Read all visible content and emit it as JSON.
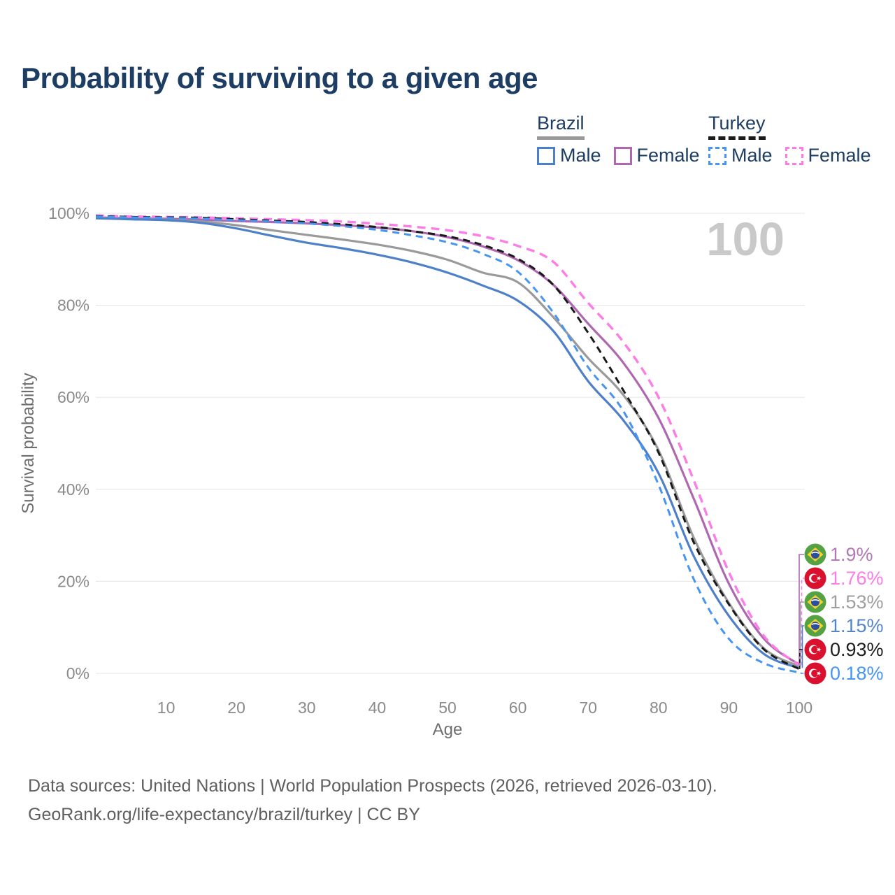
{
  "page": {
    "title": "Probability of surviving to a given age",
    "watermark_age": "100",
    "footer": {
      "line1": "Data sources: United Nations | World Population Prospects (2026, retrieved 2026-03-10).",
      "line2": "GeoRank.org/life-expectancy/brazil/turkey | CC BY"
    }
  },
  "legend": {
    "groups": [
      {
        "label": "Brazil",
        "line_style": "solid",
        "underline_color": "#9a9a9a",
        "items": [
          {
            "label": "Male",
            "color": "#4d80c9",
            "dashed": false
          },
          {
            "label": "Female",
            "color": "#ae68b1",
            "dashed": false
          }
        ]
      },
      {
        "label": "Turkey",
        "line_style": "dashed",
        "underline_color": "#1a1a1a",
        "items": [
          {
            "label": "Male",
            "color": "#4795f2",
            "dashed": true
          },
          {
            "label": "Female",
            "color": "#fc7de6",
            "dashed": true
          }
        ]
      }
    ]
  },
  "chart_data": {
    "type": "line",
    "title": "Probability of surviving to a given age",
    "xlabel": "Age",
    "ylabel": "Survival probability",
    "xlim": [
      0,
      100
    ],
    "ylim": [
      0,
      100
    ],
    "grid": true,
    "x_ticks": [
      10,
      20,
      30,
      40,
      50,
      60,
      70,
      80,
      90,
      100
    ],
    "y_ticks": [
      0,
      20,
      40,
      60,
      80,
      100
    ],
    "y_tick_suffix": "%",
    "x": [
      0,
      5,
      10,
      15,
      20,
      25,
      30,
      35,
      40,
      45,
      50,
      55,
      60,
      65,
      70,
      75,
      80,
      85,
      90,
      95,
      100
    ],
    "series": [
      {
        "id": "brazil_female",
        "name": "Brazil Female",
        "country": "Brazil",
        "sex": "Female",
        "color": "#ae68b1",
        "dash": "solid",
        "width": 3.2,
        "end_label": "1.9%",
        "values": [
          99.1,
          98.9,
          98.8,
          98.6,
          98.3,
          98.1,
          97.8,
          97.4,
          96.9,
          96.1,
          94.8,
          92.8,
          89.8,
          84.5,
          76.0,
          67.5,
          55.5,
          38.0,
          19.5,
          7.5,
          1.9
        ]
      },
      {
        "id": "brazil_avg",
        "name": "Brazil",
        "country": "Brazil",
        "sex": "Both",
        "color": "#9a9a9a",
        "dash": "solid",
        "width": 3.2,
        "end_label": "1.53%",
        "values": [
          99.0,
          98.8,
          98.6,
          98.2,
          97.4,
          96.3,
          95.3,
          94.3,
          93.2,
          91.8,
          89.9,
          87.1,
          85.0,
          77.5,
          68.5,
          60.5,
          48.5,
          29.5,
          15.3,
          5.4,
          1.53
        ]
      },
      {
        "id": "brazil_male",
        "name": "Brazil Male",
        "country": "Brazil",
        "sex": "Male",
        "color": "#4d80c9",
        "dash": "solid",
        "width": 3.2,
        "end_label": "1.15%",
        "values": [
          98.9,
          98.7,
          98.5,
          97.9,
          96.7,
          95.1,
          93.6,
          92.4,
          91.0,
          89.3,
          87.1,
          84.3,
          81.0,
          74.5,
          63.5,
          55.0,
          43.5,
          25.5,
          12.5,
          4.2,
          1.15
        ]
      },
      {
        "id": "turkey_female",
        "name": "Turkey Female",
        "country": "Turkey",
        "sex": "Female",
        "color": "#fc7de6",
        "dash": "dashed",
        "width": 3.4,
        "end_label": "1.76%",
        "values": [
          99.5,
          99.3,
          99.2,
          99.1,
          98.9,
          98.7,
          98.5,
          98.2,
          97.7,
          97.1,
          96.3,
          95.0,
          92.9,
          89.5,
          80.5,
          72.0,
          60.0,
          42.0,
          22.0,
          8.1,
          1.76
        ]
      },
      {
        "id": "turkey_avg",
        "name": "Turkey",
        "country": "Turkey",
        "sex": "Both",
        "color": "#1a1a1a",
        "dash": "dashed",
        "width": 3.0,
        "end_label": "0.93%",
        "values": [
          99.4,
          99.2,
          99.1,
          99.0,
          98.7,
          98.4,
          98.1,
          97.6,
          97.0,
          96.1,
          95.0,
          93.1,
          90.1,
          84.5,
          74.0,
          61.5,
          48.0,
          28.5,
          15.0,
          5.2,
          0.93
        ]
      },
      {
        "id": "turkey_male",
        "name": "Turkey Male",
        "country": "Turkey",
        "sex": "Male",
        "color": "#4795f2",
        "dash": "dashed",
        "width": 3.0,
        "end_label": "0.18%",
        "values": [
          99.3,
          99.1,
          99.0,
          98.8,
          98.5,
          98.2,
          97.8,
          97.2,
          96.4,
          95.2,
          93.7,
          91.2,
          87.3,
          78.5,
          66.5,
          57.0,
          41.0,
          20.5,
          7.5,
          2.2,
          0.18
        ]
      }
    ],
    "end_labels": [
      {
        "text": "1.9%",
        "series": "brazil_female",
        "flag": "brazil",
        "color": "#b279b4"
      },
      {
        "text": "1.76%",
        "series": "turkey_female",
        "flag": "turkey",
        "color": "#fc7de6"
      },
      {
        "text": "1.53%",
        "series": "brazil_avg",
        "flag": "brazil",
        "color": "#9e9e9e"
      },
      {
        "text": "1.15%",
        "series": "brazil_male",
        "flag": "brazil",
        "color": "#5585c9"
      },
      {
        "text": "0.93%",
        "series": "turkey_avg",
        "flag": "turkey",
        "color": "#1e1e1e"
      },
      {
        "text": "0.18%",
        "series": "turkey_male",
        "flag": "turkey",
        "color": "#4795f2"
      }
    ],
    "flag_colors": {
      "brazil": {
        "green": "#55a245",
        "yellow": "#f6d32b",
        "blue": "#2a4fa0",
        "band": "#ffffff"
      },
      "turkey": {
        "red": "#d9112f",
        "white": "#ffffff"
      }
    },
    "legend_position": "top-right",
    "watermark": "100"
  }
}
